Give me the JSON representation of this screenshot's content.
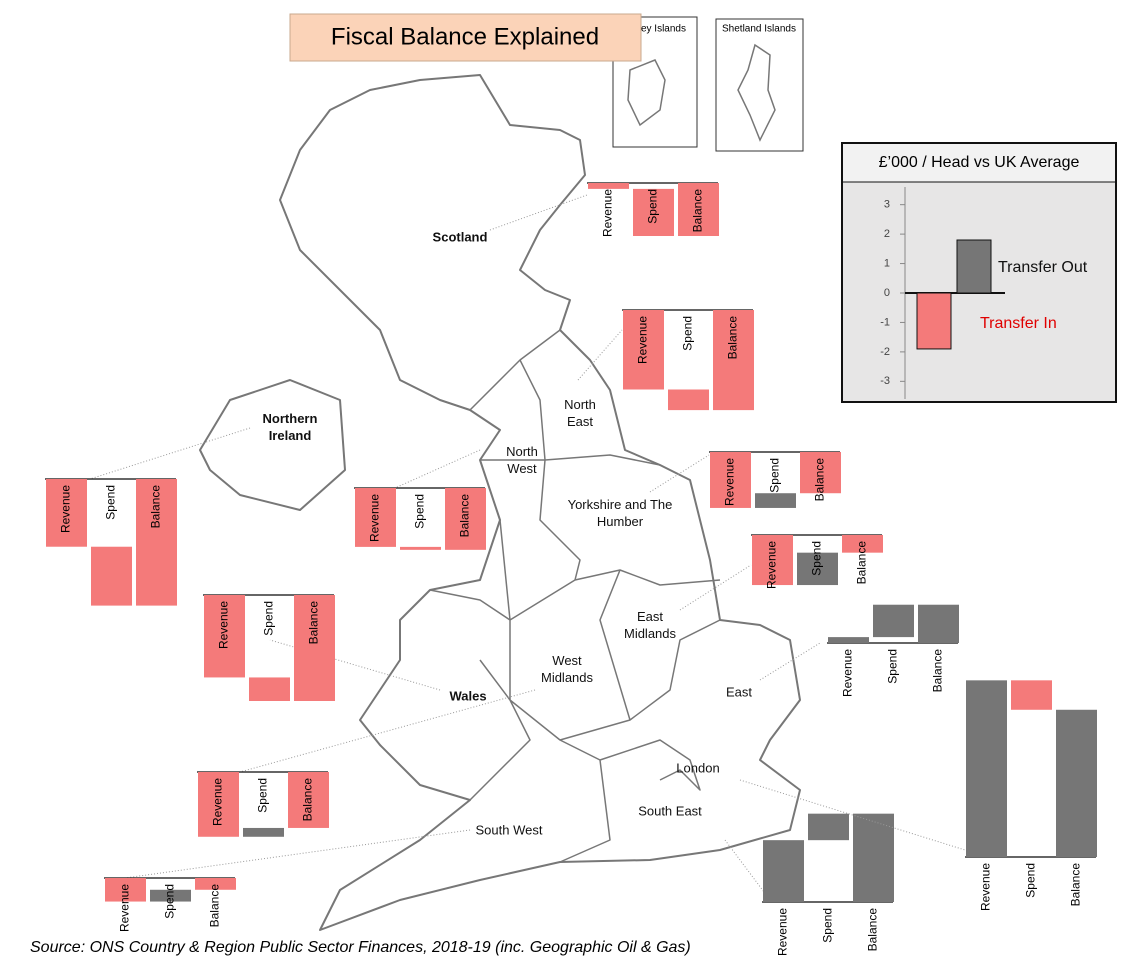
{
  "title": "Fiscal Balance Explained",
  "source": "Source: ONS Country & Region Public Sector Finances, 2018-19 (inc. Geographic Oil & Gas)",
  "insets": [
    "Orkney Islands",
    "Shetland Islands"
  ],
  "chart_data": [
    {
      "type": "bar",
      "title": "£’000 / Head vs UK Average",
      "categories": [
        "Transfer In",
        "Transfer Out"
      ],
      "values": [
        -1.9,
        1.8
      ],
      "colors": [
        "#f47a7a",
        "#767676"
      ],
      "ylim": [
        -3.6,
        3.6
      ],
      "yticks": [
        -3,
        -2,
        -1,
        0,
        1,
        2,
        3
      ]
    },
    {
      "type": "waterfall",
      "title": "Scotland",
      "categories": [
        "Revenue",
        "Spend",
        "Balance"
      ],
      "values": [
        -0.2,
        -1.6,
        -1.8
      ]
    },
    {
      "type": "waterfall",
      "title": "North East",
      "categories": [
        "Revenue",
        "Spend",
        "Balance"
      ],
      "values": [
        -2.7,
        -0.7,
        -3.4
      ]
    },
    {
      "type": "waterfall",
      "title": "Northern Ireland",
      "categories": [
        "Revenue",
        "Spend",
        "Balance"
      ],
      "values": [
        -2.3,
        -2.0,
        -4.3
      ]
    },
    {
      "type": "waterfall",
      "title": "North West",
      "categories": [
        "Revenue",
        "Spend",
        "Balance"
      ],
      "values": [
        -2.0,
        -0.1,
        -2.1
      ]
    },
    {
      "type": "waterfall",
      "title": "Yorkshire and The Humber",
      "categories": [
        "Revenue",
        "Spend",
        "Balance"
      ],
      "values": [
        -1.9,
        0.5,
        -1.4
      ]
    },
    {
      "type": "waterfall",
      "title": "East Midlands",
      "categories": [
        "Revenue",
        "Spend",
        "Balance"
      ],
      "values": [
        -1.7,
        1.1,
        -0.6
      ]
    },
    {
      "type": "waterfall",
      "title": "Wales",
      "categories": [
        "Revenue",
        "Spend",
        "Balance"
      ],
      "values": [
        -2.8,
        -0.8,
        -3.6
      ]
    },
    {
      "type": "waterfall",
      "title": "West Midlands",
      "categories": [
        "Revenue",
        "Spend",
        "Balance"
      ],
      "values": [
        -2.2,
        0.3,
        -1.9
      ]
    },
    {
      "type": "waterfall",
      "title": "South West",
      "categories": [
        "Revenue",
        "Spend",
        "Balance"
      ],
      "values": [
        -0.8,
        0.4,
        -0.4
      ]
    },
    {
      "type": "waterfall",
      "title": "East",
      "categories": [
        "Revenue",
        "Spend",
        "Balance"
      ],
      "values": [
        0.2,
        1.1,
        1.3
      ]
    },
    {
      "type": "waterfall",
      "title": "South East",
      "categories": [
        "Revenue",
        "Spend",
        "Balance"
      ],
      "values": [
        2.1,
        0.9,
        3.0
      ]
    },
    {
      "type": "waterfall",
      "title": "London",
      "categories": [
        "Revenue",
        "Spend",
        "Balance"
      ],
      "values": [
        6.0,
        -1.0,
        5.0
      ]
    }
  ]
}
